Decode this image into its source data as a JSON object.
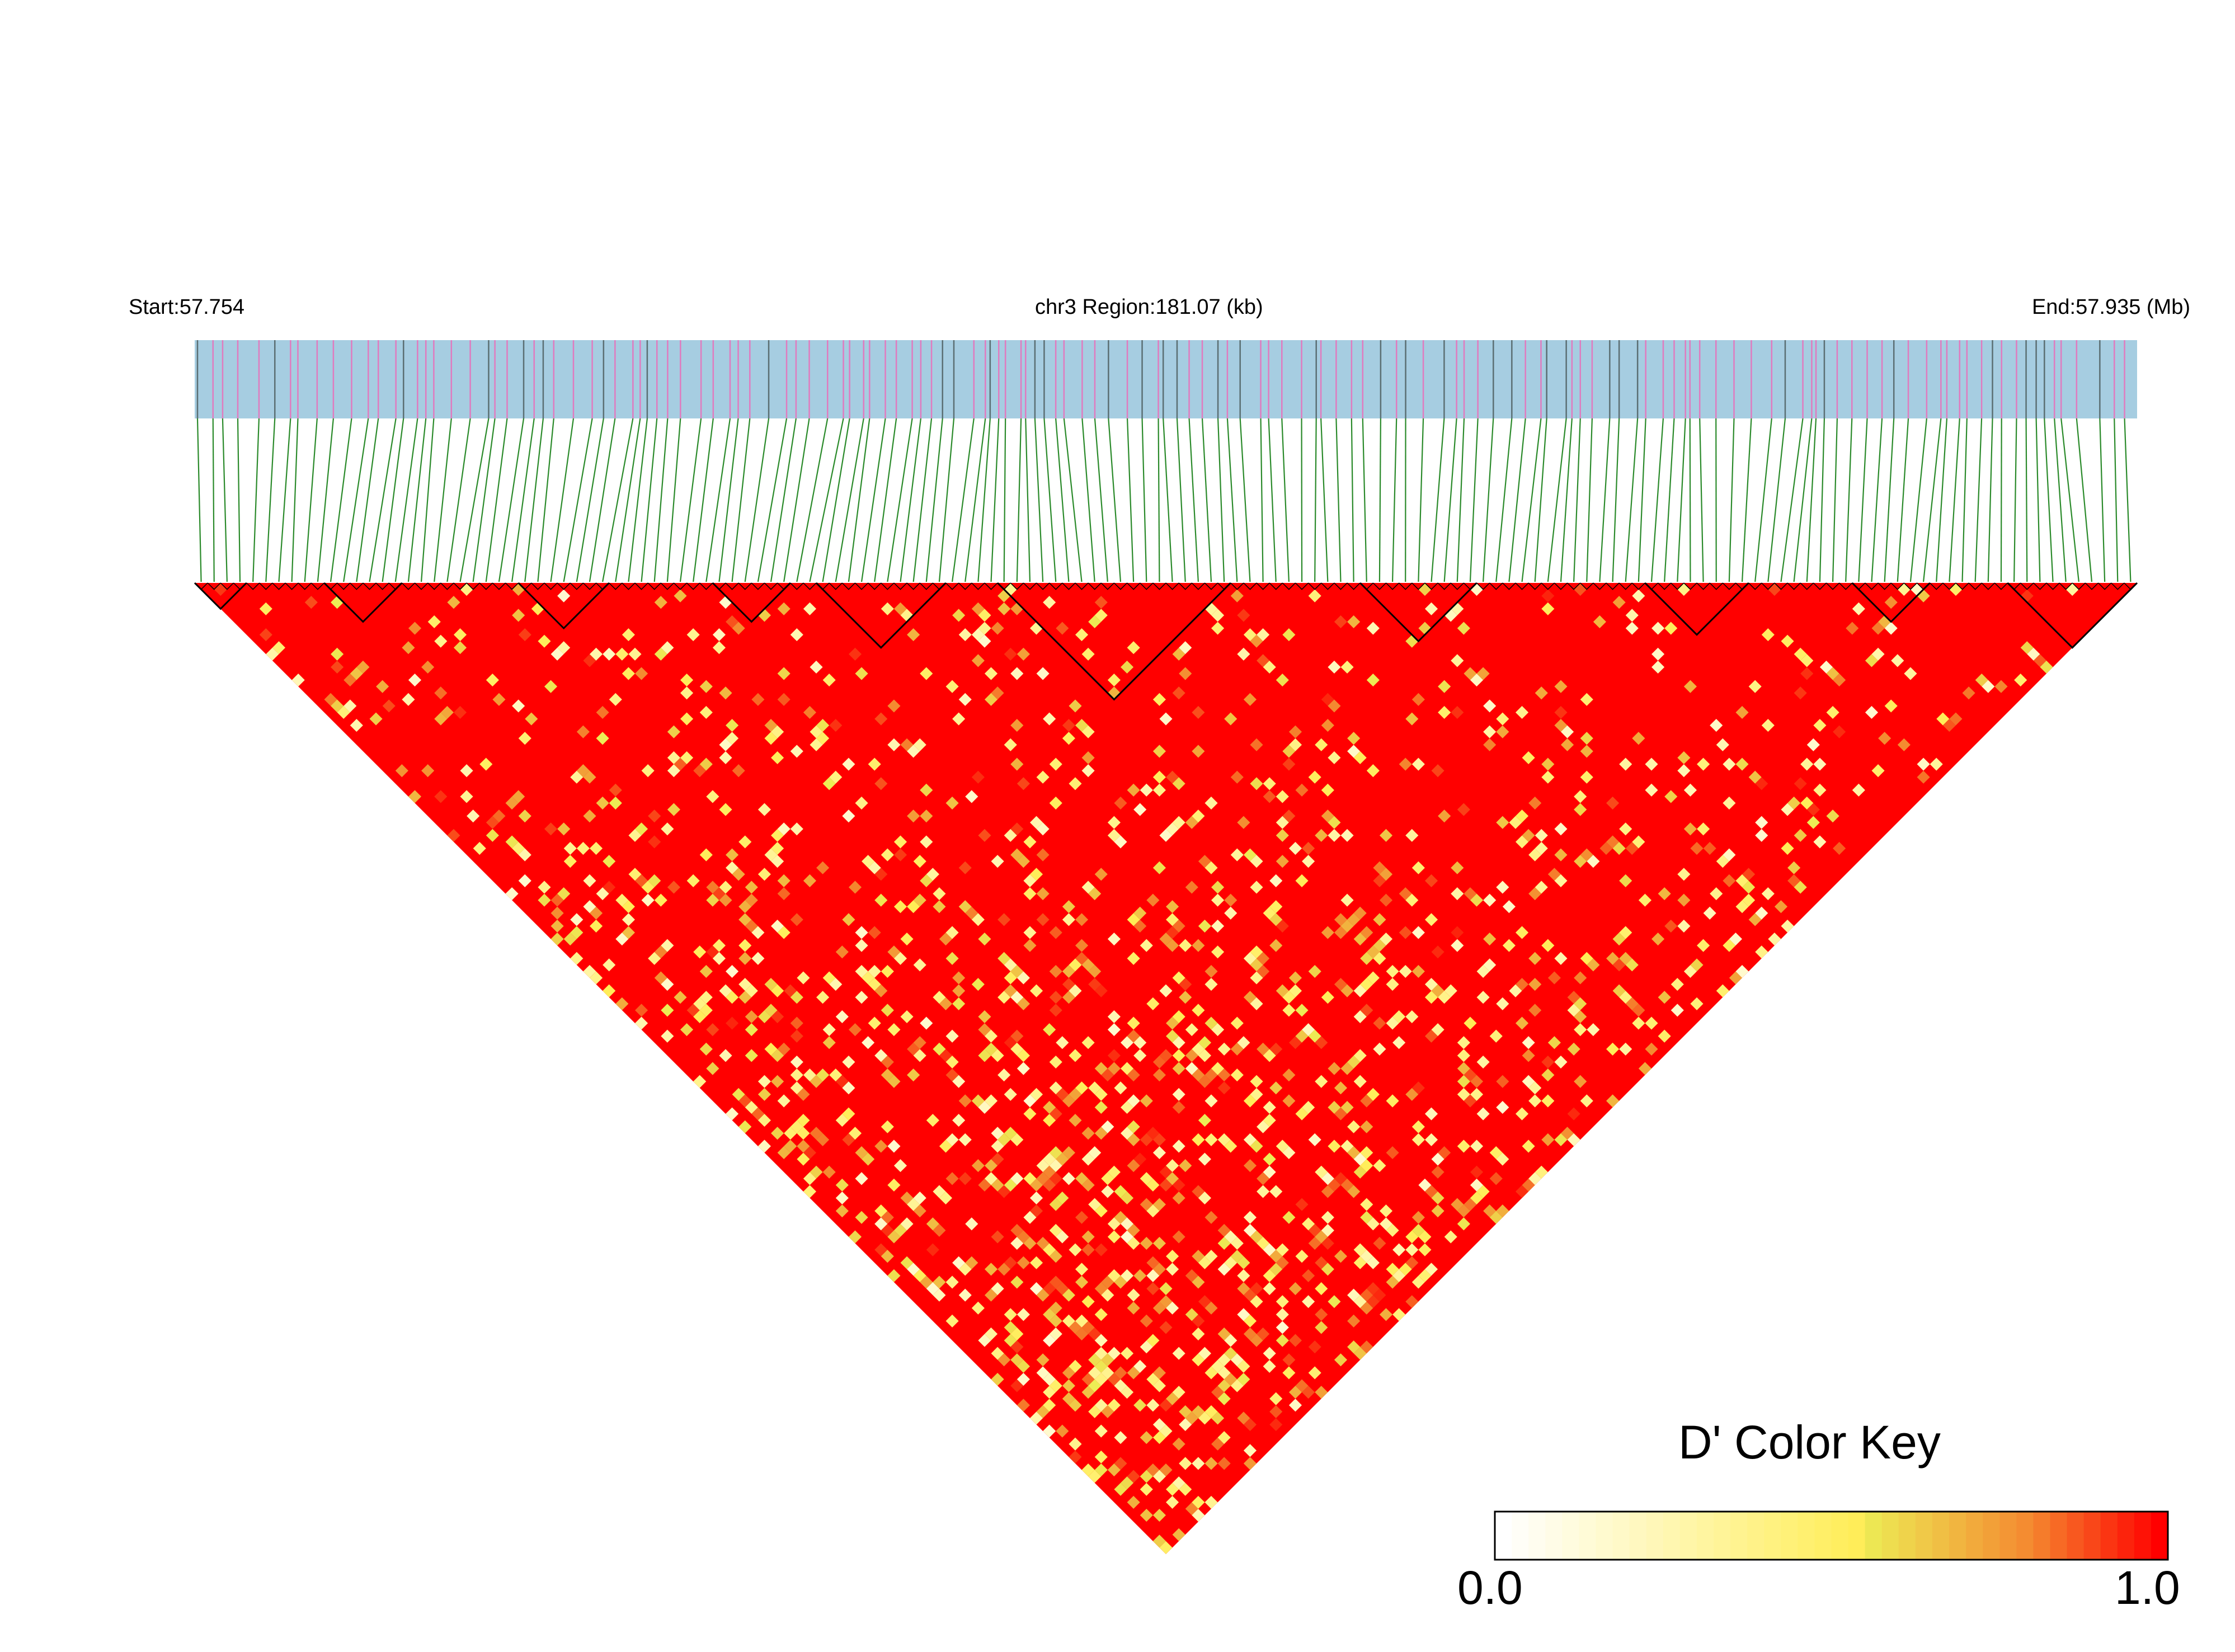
{
  "header": {
    "start_label": "Start:57.754",
    "region_label": "chr3 Region:181.07 (kb)",
    "end_label": "End:57.935 (Mb)"
  },
  "colors": {
    "track_background": "#a6cde1",
    "snp_pink": "#e07bbf",
    "snp_dark": "#5b6f73",
    "connector_green": "#2a8a2a",
    "block_outline": "#000000",
    "key_low": "#ffffff",
    "key_mid": "#eded55",
    "key_high": "#ff0000"
  },
  "chart_data": {
    "type": "heatmap",
    "measure": "D'",
    "chromosome": "chr3",
    "start_mb": 57.754,
    "end_mb": 57.935,
    "region_kb": 181.07,
    "dominant_value": 1.0,
    "color_key": {
      "title": "D' Color Key",
      "min_label": "0.0",
      "max_label": "1.0",
      "range": [
        0.0,
        1.0
      ]
    }
  }
}
